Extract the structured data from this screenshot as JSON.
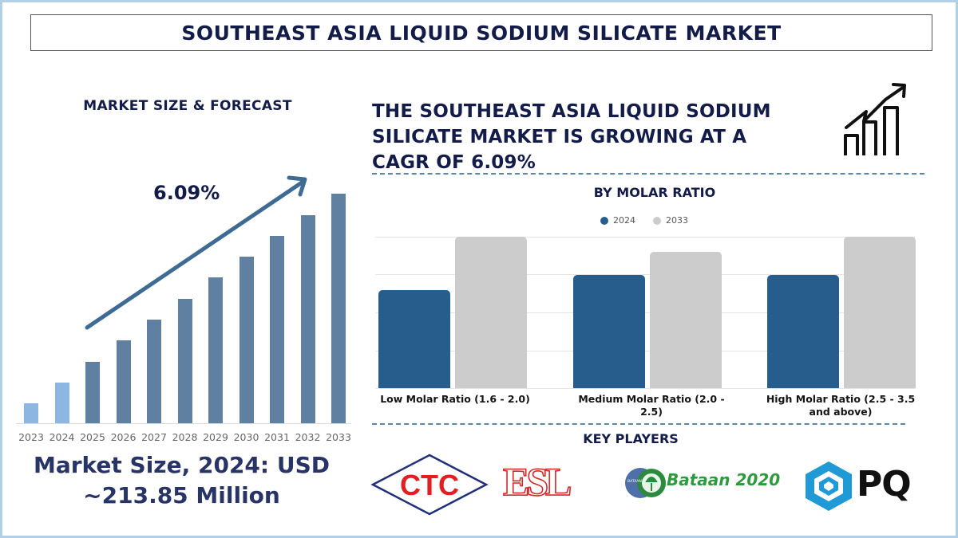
{
  "page": {
    "title": "SOUTHEAST ASIA LIQUID SODIUM SILICATE MARKET"
  },
  "left_panel": {
    "heading": "MARKET SIZE & FORECAST",
    "cagr_label": "6.09%",
    "market_size_line1": "Market Size, 2024: USD",
    "market_size_line2": "~213.85 Million"
  },
  "right_panel": {
    "headline_line1": "THE SOUTHEAST ASIA LIQUID SODIUM",
    "headline_line2": "SILICATE MARKET IS GROWING AT A",
    "headline_line3": "CAGR OF 6.09%",
    "icon": "growth-chart-icon",
    "segment_title": "BY MOLAR RATIO",
    "legend": [
      {
        "label": "2024",
        "color": "#265d8c"
      },
      {
        "label": "2033",
        "color": "#cccccc"
      }
    ],
    "categories": [
      {
        "line1": "Low Molar Ratio (1.6 - 2.0)",
        "line2": ""
      },
      {
        "line1": "Medium Molar Ratio (2.0 -",
        "line2": "2.5)"
      },
      {
        "line1": "High Molar Ratio (2.5 - 3.5",
        "line2": "and above)"
      }
    ],
    "key_players_title": "KEY PLAYERS",
    "key_players": [
      {
        "name": "CTC",
        "text": "CTC"
      },
      {
        "name": "ESL",
        "text": "ESL"
      },
      {
        "name": "Bataan 2020",
        "text": "Bataan 2020",
        "badge": "BATAAN"
      },
      {
        "name": "PQ",
        "text": "PQ"
      }
    ]
  },
  "colors": {
    "title_text": "#131c48",
    "bar_history": "#8db7e2",
    "bar_forecast": "#5f80a0",
    "arrow": "#3d6b93",
    "series_2024": "#265d8c",
    "series_2033": "#cccccc",
    "frame_border": "#b3cfe8"
  },
  "chart_data": [
    {
      "type": "bar",
      "title": "MARKET SIZE & FORECAST",
      "xlabel": "",
      "ylabel": "",
      "categories": [
        "2023",
        "2024",
        "2025",
        "2026",
        "2027",
        "2028",
        "2029",
        "2030",
        "2031",
        "2032",
        "2033"
      ],
      "values": [
        25,
        51,
        77,
        104,
        130,
        156,
        183,
        209,
        235,
        261,
        288
      ],
      "value_units": "relative bar height (px), no axis shown",
      "series_styles": {
        "historical": [
          "2023",
          "2024"
        ],
        "forecast": [
          "2025",
          "2026",
          "2027",
          "2028",
          "2029",
          "2030",
          "2031",
          "2032",
          "2033"
        ]
      },
      "annotations": [
        {
          "text": "6.09%",
          "type": "CAGR arrow"
        }
      ],
      "grid": false,
      "legend": "none"
    },
    {
      "type": "bar",
      "title": "BY MOLAR RATIO",
      "xlabel": "",
      "ylabel": "",
      "categories": [
        "Low Molar Ratio (1.6 - 2.0)",
        "Medium Molar Ratio (2.0 - 2.5)",
        "High Molar Ratio (2.5 - 3.5 and above)"
      ],
      "series": [
        {
          "name": "2024",
          "values": [
            65,
            75,
            75
          ]
        },
        {
          "name": "2033",
          "values": [
            100,
            90,
            100
          ]
        }
      ],
      "ylim": [
        0,
        100
      ],
      "value_units": "relative (% of tallest bar), no axis ticks shown",
      "grid": true,
      "legend": "top"
    }
  ]
}
